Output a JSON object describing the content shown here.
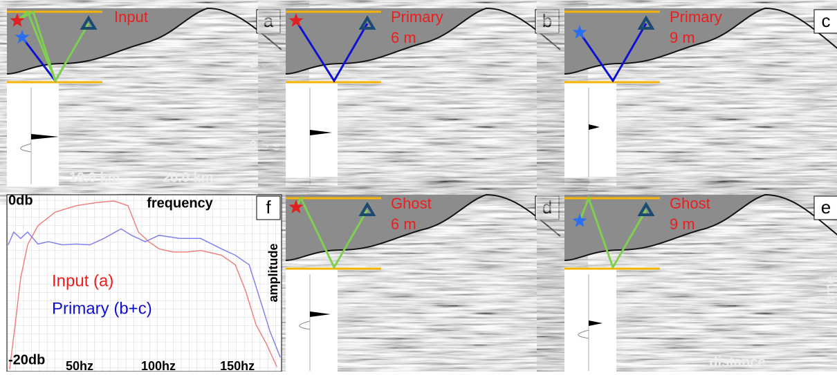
{
  "panels": [
    {
      "letter": "a",
      "label": [
        "Input"
      ],
      "notes": [
        "2.5 s",
        "3.5 s",
        "10.0 km",
        "20.0 km"
      ]
    },
    {
      "letter": "b",
      "label": [
        "Primary",
        "6 m"
      ]
    },
    {
      "letter": "c",
      "label": [
        "Primary",
        "9 m"
      ]
    },
    {
      "letter": "d",
      "label": [
        "Ghost",
        "6 m"
      ]
    },
    {
      "letter": "e",
      "label": [
        "Ghost",
        "9 m"
      ],
      "notes": [
        "time",
        "distance"
      ]
    }
  ],
  "chart_data": {
    "type": "line",
    "letter": "f",
    "x_label": "frequency",
    "y_label": "amplitude",
    "xlim": [
      4,
      178
    ],
    "ylim": [
      -20,
      0
    ],
    "xticks": [
      {
        "value": 50,
        "label": "50hz"
      },
      {
        "value": 100,
        "label": "100hz"
      },
      {
        "value": 150,
        "label": "150hz"
      }
    ],
    "yticks": [
      {
        "value": 0,
        "label": "0db"
      },
      {
        "value": -20,
        "label": "-20db"
      }
    ],
    "series": [
      {
        "name": "Input (a)",
        "color": "#f08080",
        "x": [
          5.7,
          9.2,
          12.7,
          17.1,
          23.7,
          34.6,
          47.8,
          61,
          71.9,
          80.7,
          87.3,
          93.9,
          100.4,
          109.2,
          118,
          126.8,
          139.9,
          148.7,
          155.3,
          161.8,
          168.4,
          175
        ],
        "values": [
          -21.1,
          -15.5,
          -9.7,
          -5.5,
          -3.1,
          -1.4,
          -0.6,
          -0.2,
          0,
          -0.6,
          -3.9,
          -5.1,
          -6.0,
          -6.4,
          -6.4,
          -6.2,
          -6.8,
          -8.0,
          -11.3,
          -15.5,
          -17.9,
          -20.8
        ]
      },
      {
        "name": "Primary (b+c)",
        "color": "#8080f0",
        "x": [
          4.8,
          8.3,
          12.7,
          17.1,
          23.7,
          30.3,
          39,
          47.8,
          56.6,
          65.4,
          76.3,
          82.9,
          91.7,
          100.4,
          113.6,
          126.8,
          139.9,
          148.7,
          157.5,
          164,
          170.6,
          177.2
        ],
        "values": [
          -5.5,
          -3.9,
          -4.7,
          -3.9,
          -5.4,
          -5.1,
          -5.5,
          -5.4,
          -5.5,
          -4.7,
          -3.5,
          -4.3,
          -5.1,
          -4.3,
          -4.7,
          -4.7,
          -6.0,
          -6.8,
          -8.0,
          -12.1,
          -16.3,
          -19.6
        ]
      }
    ]
  }
}
